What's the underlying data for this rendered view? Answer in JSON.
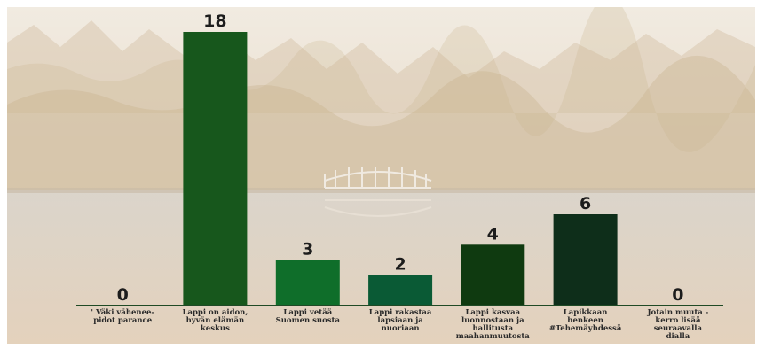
{
  "chart_data": {
    "type": "bar",
    "title": "",
    "xlabel": "",
    "ylabel": "",
    "ylim": [
      0,
      18
    ],
    "grid": false,
    "legend": "none",
    "categories": [
      [
        "' Väki vähenee-",
        "pidot parance"
      ],
      [
        "Lappi on aidon,",
        "hyvän elämän",
        "keskus"
      ],
      [
        "Lappi vetää",
        "Suomen suosta"
      ],
      [
        "Lappi rakastaa",
        "lapsiaan ja",
        "nuoriaan"
      ],
      [
        "Lappi kasvaa",
        "luonnostaan ja",
        "hallitusta",
        "maahanmuutosta"
      ],
      [
        "Lapikkaan",
        "henkeen",
        "#Tehemäyhdessä"
      ],
      [
        "Jotain muuta -",
        "kerro lisää",
        "seuraavalla",
        "dialla"
      ]
    ],
    "values": [
      0,
      18,
      3,
      2,
      4,
      6,
      0
    ],
    "bar_colors": [
      "#1e5a1e",
      "#17571c",
      "#0f6e2a",
      "#0a5a35",
      "#0f3a10",
      "#0e2e1a",
      "#1e5a1e"
    ],
    "axis_color": "#1f4a25"
  }
}
